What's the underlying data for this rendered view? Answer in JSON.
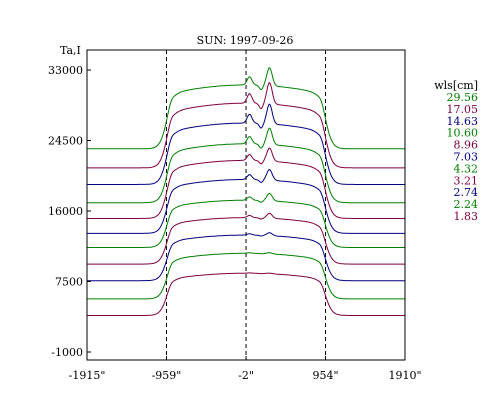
{
  "chart_data": {
    "type": "line",
    "title": "SUN: 1997-09-26",
    "ylabel": "Ta,I",
    "xlabel": "",
    "xlim": [
      -1915,
      1910
    ],
    "ylim": [
      -1000,
      34500
    ],
    "x_ticks": [
      {
        "value": -1915,
        "label": "-1915\""
      },
      {
        "value": -959,
        "label": "-959\""
      },
      {
        "value": -2,
        "label": "-2\""
      },
      {
        "value": 954,
        "label": "954\""
      },
      {
        "value": 1910,
        "label": "1910\""
      }
    ],
    "y_ticks": [
      {
        "value": 33000,
        "label": "33000"
      },
      {
        "value": 24500,
        "label": "24500"
      },
      {
        "value": 16000,
        "label": "16000"
      },
      {
        "value": 7500,
        "label": "7500"
      },
      {
        "value": -1000,
        "label": "-1000"
      }
    ],
    "vertical_dashed_lines": [
      -959,
      -2,
      954
    ],
    "legend_title": "wls[cm]",
    "legend_placement": "right",
    "series": [
      {
        "name": "29.56",
        "color": "#008000",
        "baseline": 23500,
        "plateau": 31200,
        "peak": 2200
      },
      {
        "name": "17.05",
        "color": "#800040",
        "baseline": 21200,
        "plateau": 29000,
        "peak": 2600
      },
      {
        "name": "14.63",
        "color": "#000080",
        "baseline": 19200,
        "plateau": 26600,
        "peak": 2400
      },
      {
        "name": "10.60",
        "color": "#008000",
        "baseline": 17000,
        "plateau": 24100,
        "peak": 2000
      },
      {
        "name": "8.96",
        "color": "#800040",
        "baseline": 15100,
        "plateau": 22100,
        "peak": 1600
      },
      {
        "name": "7.03",
        "color": "#000080",
        "baseline": 13300,
        "plateau": 19800,
        "peak": 1300
      },
      {
        "name": "4.32",
        "color": "#008000",
        "baseline": 11600,
        "plateau": 17300,
        "peak": 900
      },
      {
        "name": "3.21",
        "color": "#800040",
        "baseline": 9600,
        "plateau": 15200,
        "peak": 600
      },
      {
        "name": "2.74",
        "color": "#000080",
        "baseline": 7600,
        "plateau": 13100,
        "peak": 350
      },
      {
        "name": "2.24",
        "color": "#008000",
        "baseline": 5400,
        "plateau": 10900,
        "peak": 150
      },
      {
        "name": "1.83",
        "color": "#800040",
        "baseline": 3400,
        "plateau": 8500,
        "peak": 80
      }
    ]
  }
}
